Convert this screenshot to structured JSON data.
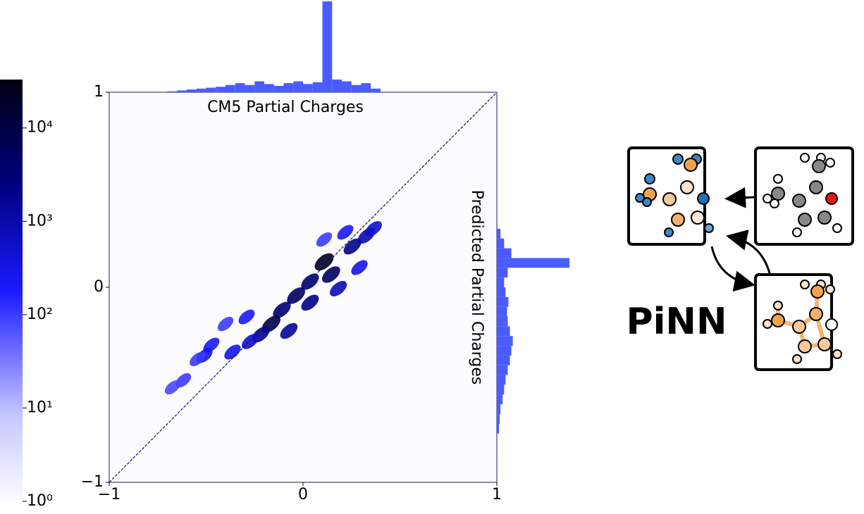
{
  "chart_data": {
    "type": "hist2d",
    "xlabel": "CM5 Partial Charges",
    "ylabel": "Predicted Partial Charges",
    "xlim": [
      -1,
      1
    ],
    "ylim": [
      -1,
      1
    ],
    "xticks": [
      {
        "value": -1,
        "label": "−1"
      },
      0,
      1
    ],
    "yticks": [
      {
        "value": -1,
        "label": "−1"
      },
      0,
      1
    ],
    "diagonal": true,
    "x": [
      0.109,
      0.145,
      0.255,
      0.327,
      0.364,
      0.036,
      -0.036,
      -0.109,
      -0.164,
      -0.218,
      -0.273,
      -0.364,
      -0.473,
      -0.509,
      -0.4,
      -0.545,
      -0.618,
      -0.673,
      -0.073,
      0.036,
      0.182,
      0.291,
      -0.291,
      0.109,
      0.218
    ],
    "y": [
      0.13,
      0.065,
      0.209,
      0.264,
      0.3,
      0.029,
      -0.043,
      -0.116,
      -0.188,
      -0.242,
      -0.278,
      -0.332,
      -0.296,
      -0.35,
      -0.188,
      -0.368,
      -0.477,
      -0.513,
      -0.224,
      -0.079,
      -0.007,
      0.101,
      -0.152,
      0.245,
      0.282
    ],
    "counts": [
      20000,
      5000,
      2000,
      1000,
      500,
      3000,
      5000,
      3000,
      10000,
      2000,
      500,
      300,
      200,
      300,
      100,
      100,
      100,
      80,
      1500,
      2000,
      800,
      300,
      200,
      100,
      200
    ],
    "colorbar": {
      "log": true,
      "lim": [
        1,
        33000
      ],
      "ticks": [
        {
          "value": 1,
          "label": "10⁰"
        },
        {
          "value": 10,
          "label": "10¹"
        },
        {
          "value": 100,
          "label": "10²"
        },
        {
          "value": 1000,
          "label": "10³"
        },
        {
          "value": 10000,
          "label": "10⁴"
        }
      ]
    },
    "x_marginal": {
      "color": "#4a5cff",
      "bins": [
        -0.7,
        -0.65,
        -0.6,
        -0.55,
        -0.5,
        -0.45,
        -0.4,
        -0.35,
        -0.3,
        -0.25,
        -0.2,
        -0.15,
        -0.1,
        -0.05,
        0,
        0.05,
        0.1,
        0.15,
        0.2,
        0.25,
        0.3,
        0.35,
        0.4
      ],
      "counts": [
        1,
        2,
        3,
        4,
        5,
        6,
        8,
        10,
        8,
        12,
        9,
        7,
        10,
        12,
        9,
        11,
        100,
        14,
        12,
        8,
        10,
        4
      ]
    },
    "y_marginal": {
      "color": "#4a5cff",
      "bins": [
        -0.75,
        -0.7,
        -0.65,
        -0.6,
        -0.55,
        -0.5,
        -0.45,
        -0.4,
        -0.35,
        -0.3,
        -0.25,
        -0.2,
        -0.15,
        -0.1,
        -0.05,
        0,
        0.05,
        0.1,
        0.15,
        0.2,
        0.25,
        0.3
      ],
      "counts": [
        3,
        4,
        5,
        8,
        10,
        12,
        15,
        18,
        20,
        22,
        18,
        15,
        14,
        16,
        12,
        10,
        15,
        100,
        20,
        10,
        5
      ]
    }
  },
  "diagram": {
    "label": "PiNN"
  }
}
